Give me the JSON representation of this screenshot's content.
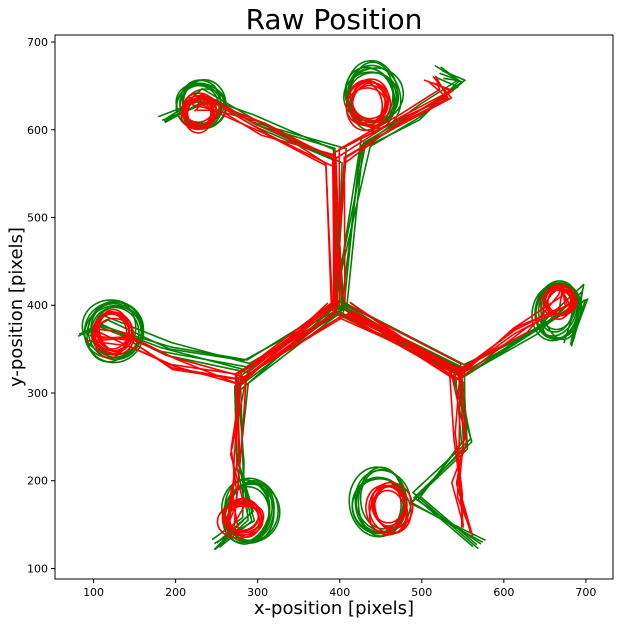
{
  "chart_data": {
    "type": "line",
    "title": "Raw Position",
    "xlabel": "x-position [pixels]",
    "ylabel": "y-position [pixels]",
    "xlim": [
      53,
      733
    ],
    "ylim": [
      88,
      708
    ],
    "xticks": [
      100,
      200,
      300,
      400,
      500,
      600,
      700
    ],
    "yticks": [
      100,
      200,
      300,
      400,
      500,
      600,
      700
    ],
    "grid": false,
    "series": [
      {
        "color": "#008000",
        "label_visible": false,
        "paths": [
          {
            "ring": [
              400,
              398
            ],
            "r": 10,
            "points": [
              [
                400,
                398
              ],
              [
                400,
                570
              ],
              [
                300,
                610
              ],
              [
                240,
                640
              ],
              [
                185,
                610
              ]
            ]
          },
          {
            "ring": [
              400,
              398
            ],
            "r": 10,
            "points": [
              [
                400,
                398
              ],
              [
                430,
                585
              ],
              [
                505,
                620
              ],
              [
                545,
                650
              ],
              [
                520,
                665
              ]
            ]
          },
          {
            "ring": [
              400,
              398
            ],
            "r": 10,
            "points": [
              [
                400,
                398
              ],
              [
                290,
                330
              ],
              [
                190,
                350
              ],
              [
                110,
                380
              ],
              [
                90,
                360
              ]
            ]
          },
          {
            "ring": [
              400,
              398
            ],
            "r": 10,
            "points": [
              [
                400,
                398
              ],
              [
                280,
                310
              ],
              [
                275,
                220
              ],
              [
                290,
                160
              ],
              [
                250,
                130
              ]
            ]
          },
          {
            "ring": [
              400,
              398
            ],
            "r": 10,
            "points": [
              [
                400,
                398
              ],
              [
                545,
                320
              ],
              [
                555,
                240
              ],
              [
                490,
                180
              ],
              [
                570,
                130
              ]
            ]
          },
          {
            "ring": [
              400,
              398
            ],
            "r": 10,
            "points": [
              [
                400,
                398
              ],
              [
                550,
                325
              ],
              [
                640,
                370
              ],
              [
                700,
                415
              ],
              [
                680,
                360
              ]
            ]
          }
        ],
        "loops": [
          {
            "cx": 232,
            "cy": 628,
            "rx": 28,
            "ry": 26
          },
          {
            "cx": 440,
            "cy": 638,
            "rx": 30,
            "ry": 34
          },
          {
            "cx": 125,
            "cy": 373,
            "rx": 36,
            "ry": 33
          },
          {
            "cx": 290,
            "cy": 165,
            "rx": 30,
            "ry": 32
          },
          {
            "cx": 450,
            "cy": 175,
            "rx": 32,
            "ry": 35
          },
          {
            "cx": 665,
            "cy": 395,
            "rx": 25,
            "ry": 30
          }
        ]
      },
      {
        "color": "#ff0000",
        "label_visible": false,
        "paths": [
          {
            "points": [
              [
                395,
                400
              ],
              [
                390,
                565
              ],
              [
                310,
                600
              ],
              [
                245,
                630
              ],
              [
                220,
                630
              ]
            ]
          },
          {
            "points": [
              [
                400,
                400
              ],
              [
                400,
                570
              ],
              [
                470,
                610
              ],
              [
                530,
                640
              ],
              [
                510,
                660
              ]
            ]
          },
          {
            "points": [
              [
                395,
                395
              ],
              [
                280,
                315
              ],
              [
                200,
                335
              ],
              [
                140,
                360
              ],
              [
                100,
                365
              ]
            ]
          },
          {
            "points": [
              [
                392,
                398
              ],
              [
                282,
                318
              ],
              [
                272,
                230
              ],
              [
                275,
                180
              ],
              [
                270,
                140
              ]
            ]
          },
          {
            "points": [
              [
                405,
                395
              ],
              [
                540,
                325
              ],
              [
                548,
                250
              ],
              [
                545,
                190
              ],
              [
                555,
                145
              ]
            ]
          },
          {
            "points": [
              [
                405,
                398
              ],
              [
                545,
                320
              ],
              [
                620,
                370
              ],
              [
                675,
                405
              ],
              [
                665,
                420
              ]
            ]
          }
        ],
        "loops": [
          {
            "cx": 228,
            "cy": 620,
            "rx": 20,
            "ry": 18
          },
          {
            "cx": 435,
            "cy": 630,
            "rx": 22,
            "ry": 25
          },
          {
            "cx": 123,
            "cy": 368,
            "rx": 22,
            "ry": 22
          },
          {
            "cx": 282,
            "cy": 158,
            "rx": 24,
            "ry": 20
          },
          {
            "cx": 460,
            "cy": 170,
            "rx": 22,
            "ry": 25
          },
          {
            "cx": 668,
            "cy": 405,
            "rx": 18,
            "ry": 18
          }
        ]
      }
    ]
  }
}
